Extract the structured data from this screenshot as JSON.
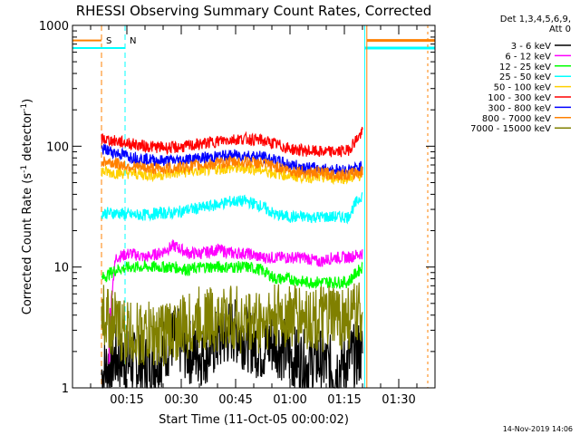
{
  "chart_data": {
    "type": "line",
    "title": "RHESSI Observing Summary Count Rates, Corrected",
    "xlabel": "Start Time (11-Oct-05 00:00:02)",
    "ylabel_parts": [
      "Corrected Count Rate (s",
      "-1",
      " detector",
      "-1",
      ")"
    ],
    "yscale": "log",
    "ylim": [
      1,
      1000
    ],
    "xlim_minutes": [
      0,
      100
    ],
    "y_ticks": [
      {
        "value": 1,
        "label": "1"
      },
      {
        "value": 10,
        "label": "10"
      },
      {
        "value": 100,
        "label": "100"
      },
      {
        "value": 1000,
        "label": "1000"
      }
    ],
    "x_ticks": [
      {
        "minute": 15,
        "label": "00:15"
      },
      {
        "minute": 30,
        "label": "00:30"
      },
      {
        "minute": 45,
        "label": "00:45"
      },
      {
        "minute": 60,
        "label": "01:00"
      },
      {
        "minute": 75,
        "label": "01:15"
      },
      {
        "minute": 90,
        "label": "01:30"
      }
    ],
    "legend_header": [
      "Det 1,3,4,5,6,9,",
      "Att 0"
    ],
    "legend_placement": "right",
    "data_start_minute": 8,
    "data_end_minute": 80,
    "series": [
      {
        "name": "3 - 6 keV",
        "color": "#000000",
        "x": [
          8,
          12,
          16,
          20,
          24,
          28,
          32,
          36,
          40,
          44,
          48,
          52,
          56,
          60,
          64,
          68,
          72,
          76,
          80
        ],
        "y": [
          1.3,
          1.8,
          1.6,
          1.5,
          1.8,
          2.6,
          2.0,
          1.9,
          2.4,
          3.0,
          2.6,
          2.1,
          2.4,
          1.8,
          1.6,
          1.7,
          1.4,
          1.7,
          2.0
        ]
      },
      {
        "name": "6 - 12 keV",
        "color": "#ff00ff",
        "x": [
          10,
          12,
          16,
          20,
          24,
          28,
          32,
          36,
          40,
          44,
          48,
          52,
          56,
          60,
          64,
          68,
          72,
          76,
          80
        ],
        "y": [
          1.5,
          12,
          13,
          12,
          13,
          15,
          13,
          13,
          14,
          13,
          13,
          12,
          12,
          12,
          12,
          11,
          12,
          12,
          13
        ]
      },
      {
        "name": "12 - 25 keV",
        "color": "#00ff00",
        "x": [
          8,
          12,
          16,
          20,
          24,
          28,
          32,
          36,
          40,
          44,
          48,
          52,
          56,
          60,
          64,
          68,
          72,
          76,
          80
        ],
        "y": [
          8,
          9.5,
          10,
          10,
          10,
          10,
          9.5,
          10,
          10,
          10,
          10,
          9.5,
          8,
          8,
          7.5,
          7.5,
          7.5,
          7.5,
          10
        ]
      },
      {
        "name": "25 - 50 keV",
        "color": "#00ffff",
        "x": [
          8,
          12,
          16,
          20,
          24,
          28,
          32,
          36,
          40,
          44,
          48,
          52,
          56,
          60,
          64,
          68,
          72,
          76,
          80
        ],
        "y": [
          28,
          28,
          27,
          27,
          28,
          28,
          30,
          31,
          33,
          35,
          35,
          32,
          27,
          26,
          26,
          26,
          26,
          26,
          40
        ]
      },
      {
        "name": "50 - 100 keV",
        "color": "#ffd000",
        "x": [
          8,
          12,
          16,
          20,
          24,
          28,
          32,
          36,
          40,
          44,
          48,
          52,
          56,
          60,
          64,
          68,
          72,
          76,
          80
        ],
        "y": [
          62,
          60,
          60,
          58,
          58,
          60,
          62,
          63,
          65,
          66,
          66,
          64,
          60,
          57,
          56,
          55,
          55,
          55,
          58
        ]
      },
      {
        "name": "100 - 300 keV",
        "color": "#ff0000",
        "x": [
          8,
          12,
          16,
          20,
          24,
          28,
          32,
          36,
          40,
          44,
          48,
          52,
          56,
          60,
          64,
          68,
          72,
          76,
          80
        ],
        "y": [
          115,
          110,
          105,
          100,
          98,
          97,
          100,
          105,
          110,
          114,
          115,
          112,
          104,
          95,
          92,
          90,
          90,
          92,
          130
        ]
      },
      {
        "name": "300 - 800 keV",
        "color": "#0000ff",
        "x": [
          8,
          12,
          16,
          20,
          24,
          28,
          32,
          36,
          40,
          44,
          48,
          52,
          56,
          60,
          64,
          68,
          72,
          76,
          80
        ],
        "y": [
          95,
          88,
          82,
          78,
          76,
          76,
          78,
          80,
          82,
          84,
          84,
          82,
          76,
          70,
          67,
          65,
          64,
          63,
          68
        ]
      },
      {
        "name": "800 - 7000 keV",
        "color": "#ff8000",
        "x": [
          8,
          12,
          16,
          20,
          24,
          28,
          32,
          36,
          40,
          44,
          48,
          52,
          56,
          60,
          64,
          68,
          72,
          76,
          80
        ],
        "y": [
          75,
          72,
          68,
          66,
          65,
          66,
          68,
          70,
          72,
          74,
          74,
          72,
          68,
          63,
          61,
          60,
          59,
          58,
          62
        ]
      },
      {
        "name": "7000 - 15000 keV",
        "color": "#808000",
        "x": [
          8,
          12,
          16,
          20,
          24,
          28,
          32,
          36,
          40,
          44,
          48,
          52,
          56,
          60,
          64,
          68,
          72,
          76,
          80
        ],
        "y": [
          4.2,
          3.2,
          2.8,
          2.7,
          2.8,
          3.0,
          3.2,
          3.8,
          3.6,
          3.8,
          3.4,
          3.6,
          3.8,
          4.0,
          3.8,
          3.6,
          3.8,
          3.8,
          4.0
        ]
      }
    ],
    "annotations": [
      {
        "text": "S",
        "color": "#ff8000",
        "x_minute": 8,
        "bar_from_minute": 0,
        "bar_to_minute": 8,
        "bar_value": 750
      },
      {
        "text": "N",
        "color": "#00ffff",
        "x_minute": 14.5,
        "bar_from_minute": 0,
        "bar_to_minute": 14.5,
        "bar_value": 650
      }
    ],
    "end_markers": [
      {
        "color": "#00ffff",
        "x_minute": 80.6,
        "bar_value": 650
      },
      {
        "color": "#ff8000",
        "x_minute": 81.2,
        "bar_value": 750
      }
    ],
    "footer_timestamp": "14-Nov-2019 14:06"
  }
}
